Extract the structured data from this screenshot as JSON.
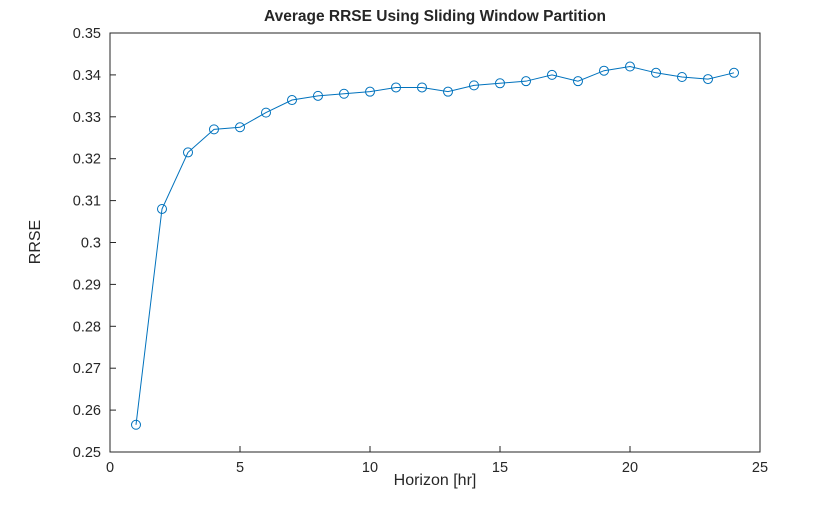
{
  "figure": {
    "background": "#ffffff"
  },
  "chart_data": {
    "type": "line",
    "title": "Average RRSE Using Sliding Window Partition",
    "xlabel": "Horizon [hr]",
    "ylabel": "RRSE",
    "x": [
      1,
      2,
      3,
      4,
      5,
      6,
      7,
      8,
      9,
      10,
      11,
      12,
      13,
      14,
      15,
      16,
      17,
      18,
      19,
      20,
      21,
      22,
      23,
      24
    ],
    "y": [
      0.2565,
      0.308,
      0.3215,
      0.327,
      0.3275,
      0.331,
      0.334,
      0.335,
      0.3355,
      0.336,
      0.337,
      0.337,
      0.336,
      0.3375,
      0.338,
      0.3385,
      0.34,
      0.3385,
      0.341,
      0.342,
      0.3405,
      0.3395,
      0.339,
      0.3405
    ],
    "xlim": [
      0,
      25
    ],
    "ylim": [
      0.25,
      0.35
    ],
    "xticks": [
      0,
      5,
      10,
      15,
      20,
      25
    ],
    "xtick_labels": [
      "0",
      "5",
      "10",
      "15",
      "20",
      "25"
    ],
    "yticks": [
      0.25,
      0.26,
      0.27,
      0.28,
      0.29,
      0.3,
      0.31,
      0.32,
      0.33,
      0.34,
      0.35
    ],
    "ytick_labels": [
      "0.25",
      "0.26",
      "0.27",
      "0.28",
      "0.29",
      "0.3",
      "0.31",
      "0.32",
      "0.33",
      "0.34",
      "0.35"
    ],
    "grid": false,
    "legend": null,
    "marker": "circle",
    "line_color": "#0072BD",
    "axis_color": "#262626",
    "tick_label_color": "#262626"
  }
}
